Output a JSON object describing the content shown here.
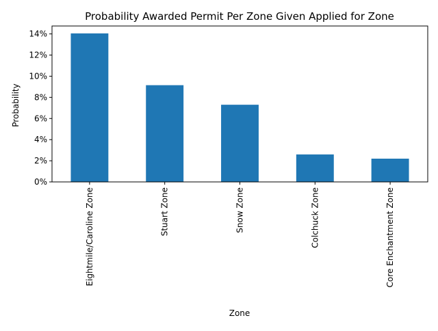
{
  "chart_data": {
    "type": "bar",
    "title": "Probability Awarded Permit Per Zone Given Applied for Zone",
    "xlabel": "Zone",
    "ylabel": "Probability",
    "categories": [
      "Eightmile/Caroline Zone",
      "Stuart  Zone",
      "Snow Zone",
      "Colchuck Zone",
      "Core Enchantment Zone"
    ],
    "values": [
      0.1405,
      0.0915,
      0.073,
      0.026,
      0.022
    ],
    "ylim": [
      0,
      0.1475
    ],
    "yticks": [
      0,
      0.02,
      0.04,
      0.06,
      0.08,
      0.1,
      0.12,
      0.14
    ],
    "ytick_labels": [
      "0%",
      "2%",
      "4%",
      "6%",
      "8%",
      "10%",
      "12%",
      "14%"
    ],
    "x_tick_rotation": "vertical",
    "grid": false,
    "legend": "none",
    "bar_color": "#1f77b4"
  }
}
